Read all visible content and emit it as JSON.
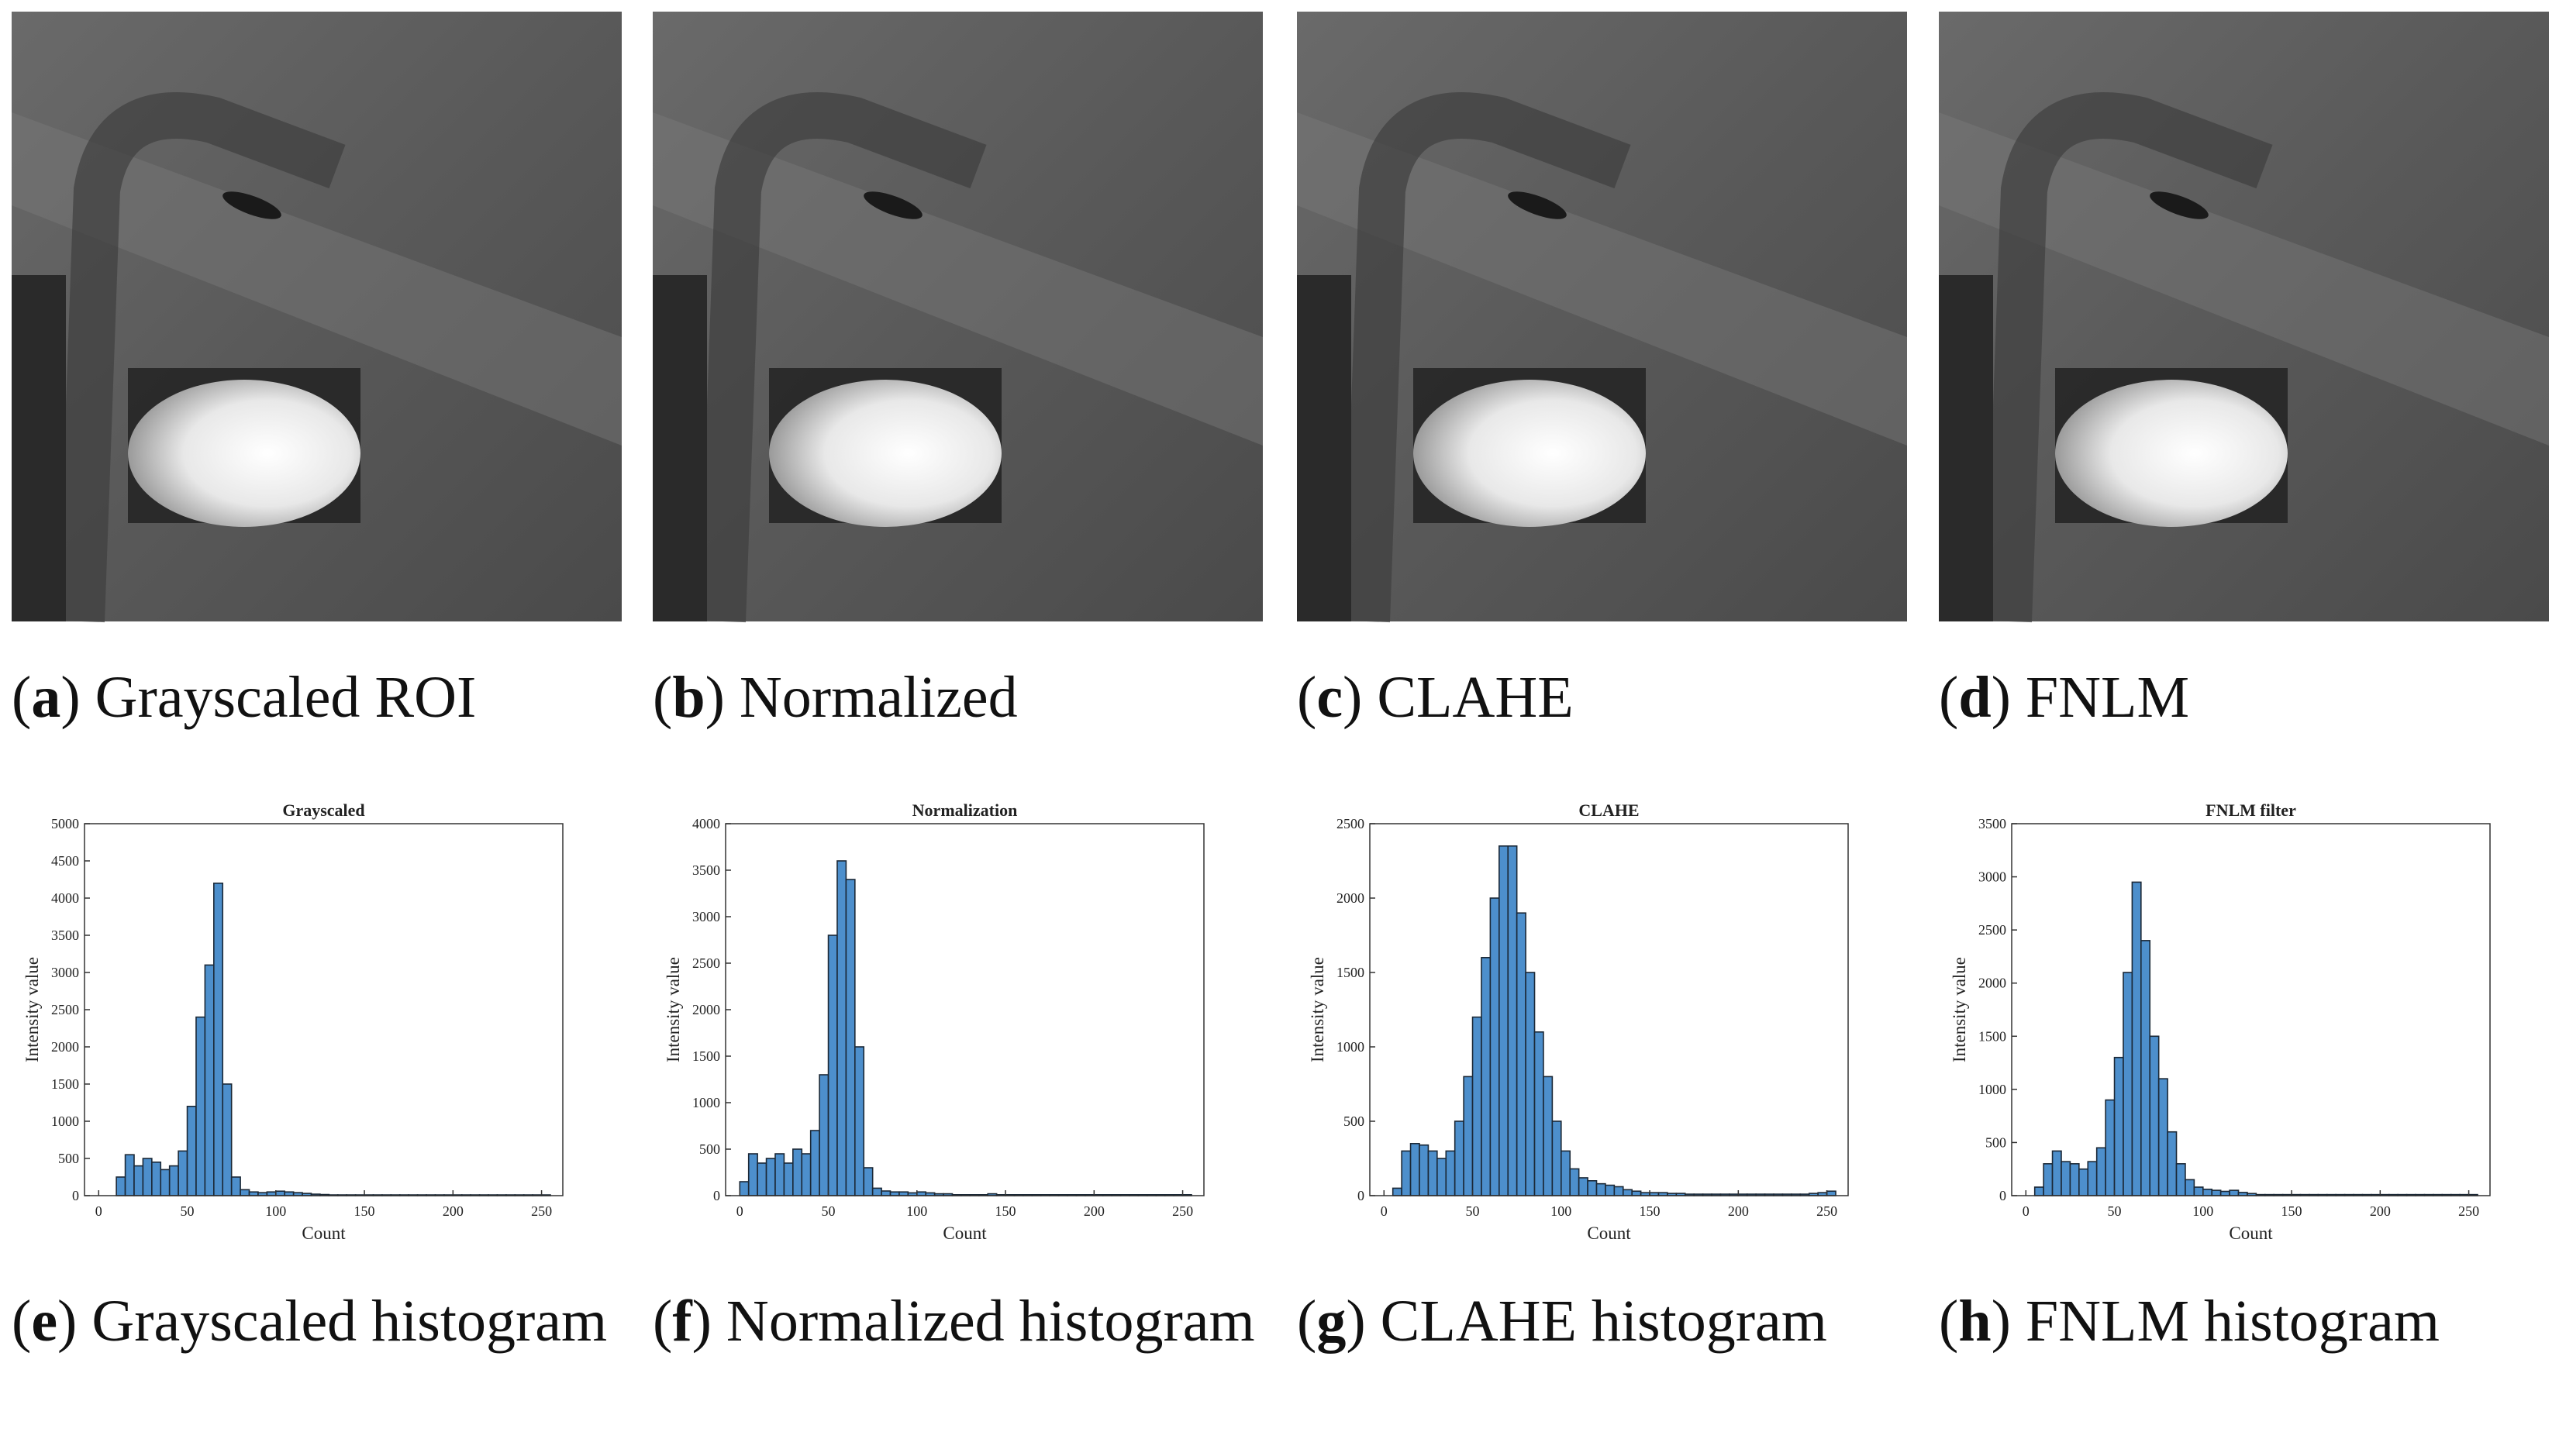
{
  "images": [
    {
      "caption": [
        "(",
        "a",
        ") Grayscaled ROI"
      ]
    },
    {
      "caption": [
        "(",
        "b",
        ") Normalized"
      ]
    },
    {
      "caption": [
        "(",
        "c",
        ") CLAHE"
      ]
    },
    {
      "caption": [
        "(",
        "d",
        ") FNLM"
      ]
    }
  ],
  "chart_data": [
    {
      "type": "histogram",
      "title": "Grayscaled",
      "xlabel": "Count",
      "ylabel": "Intensity value",
      "caption": [
        "(",
        "e",
        ") Grayscaled histogram"
      ],
      "color": "#4d8fcc",
      "bins": [
        0,
        5,
        10,
        15,
        20,
        25,
        30,
        35,
        40,
        45,
        50,
        55,
        60,
        65,
        70,
        75,
        80,
        85,
        90,
        95,
        100,
        105,
        110,
        115,
        120,
        125,
        130,
        135,
        140,
        145,
        150,
        155,
        160,
        165,
        170,
        175,
        180,
        185,
        190,
        195,
        200,
        205,
        210,
        215,
        220,
        225,
        230,
        235,
        240,
        245,
        250,
        255
      ],
      "values": [
        0,
        0,
        250,
        550,
        400,
        500,
        450,
        350,
        400,
        600,
        1200,
        2400,
        3100,
        4200,
        1500,
        250,
        80,
        50,
        40,
        50,
        60,
        50,
        40,
        30,
        20,
        15,
        10,
        10,
        10,
        10,
        10,
        10,
        10,
        10,
        10,
        10,
        10,
        10,
        10,
        10,
        10,
        10,
        10,
        10,
        10,
        10,
        10,
        10,
        10,
        10,
        10
      ],
      "xlim": [
        -8,
        262
      ],
      "xticks": [
        0,
        50,
        100,
        150,
        200,
        250
      ],
      "ylim": [
        0,
        5000
      ],
      "yticks": [
        0,
        500,
        1000,
        1500,
        2000,
        2500,
        3000,
        3500,
        4000,
        4500,
        5000
      ]
    },
    {
      "type": "histogram",
      "title": "Normalization",
      "xlabel": "Count",
      "ylabel": "Intensity value",
      "caption": [
        "(",
        "f",
        ") Normalized histogram"
      ],
      "color": "#4d8fcc",
      "bins": [
        0,
        5,
        10,
        15,
        20,
        25,
        30,
        35,
        40,
        45,
        50,
        55,
        60,
        65,
        70,
        75,
        80,
        85,
        90,
        95,
        100,
        105,
        110,
        115,
        120,
        125,
        130,
        135,
        140,
        145,
        150,
        155,
        160,
        165,
        170,
        175,
        180,
        185,
        190,
        195,
        200,
        205,
        210,
        215,
        220,
        225,
        230,
        235,
        240,
        245,
        250,
        255
      ],
      "values": [
        150,
        450,
        350,
        400,
        450,
        350,
        500,
        450,
        700,
        1300,
        2800,
        3600,
        3400,
        1600,
        300,
        80,
        50,
        40,
        40,
        30,
        40,
        30,
        20,
        20,
        10,
        10,
        10,
        10,
        20,
        10,
        10,
        10,
        10,
        10,
        10,
        10,
        10,
        10,
        10,
        10,
        10,
        10,
        10,
        10,
        10,
        10,
        10,
        10,
        10,
        10,
        10
      ],
      "xlim": [
        -8,
        262
      ],
      "xticks": [
        0,
        50,
        100,
        150,
        200,
        250
      ],
      "ylim": [
        0,
        4000
      ],
      "yticks": [
        0,
        500,
        1000,
        1500,
        2000,
        2500,
        3000,
        3500,
        4000
      ]
    },
    {
      "type": "histogram",
      "title": "CLAHE",
      "xlabel": "Count",
      "ylabel": "Intensity value",
      "caption": [
        "(",
        "g",
        ") CLAHE histogram"
      ],
      "color": "#4d8fcc",
      "bins": [
        0,
        5,
        10,
        15,
        20,
        25,
        30,
        35,
        40,
        45,
        50,
        55,
        60,
        65,
        70,
        75,
        80,
        85,
        90,
        95,
        100,
        105,
        110,
        115,
        120,
        125,
        130,
        135,
        140,
        145,
        150,
        155,
        160,
        165,
        170,
        175,
        180,
        185,
        190,
        195,
        200,
        205,
        210,
        215,
        220,
        225,
        230,
        235,
        240,
        245,
        250,
        255
      ],
      "values": [
        0,
        50,
        300,
        350,
        340,
        300,
        250,
        300,
        500,
        800,
        1200,
        1600,
        2000,
        2350,
        2350,
        1900,
        1500,
        1100,
        800,
        500,
        300,
        180,
        120,
        100,
        80,
        70,
        60,
        40,
        30,
        20,
        20,
        20,
        15,
        15,
        10,
        10,
        10,
        10,
        10,
        10,
        10,
        10,
        10,
        10,
        10,
        10,
        10,
        10,
        15,
        20,
        30
      ],
      "xlim": [
        -8,
        262
      ],
      "xticks": [
        0,
        50,
        100,
        150,
        200,
        250
      ],
      "ylim": [
        0,
        2500
      ],
      "yticks": [
        0,
        500,
        1000,
        1500,
        2000,
        2500
      ]
    },
    {
      "type": "histogram",
      "title": "FNLM filter",
      "xlabel": "Count",
      "ylabel": "Intensity value",
      "caption": [
        "(",
        "h",
        ") FNLM histogram"
      ],
      "color": "#4d8fcc",
      "bins": [
        0,
        5,
        10,
        15,
        20,
        25,
        30,
        35,
        40,
        45,
        50,
        55,
        60,
        65,
        70,
        75,
        80,
        85,
        90,
        95,
        100,
        105,
        110,
        115,
        120,
        125,
        130,
        135,
        140,
        145,
        150,
        155,
        160,
        165,
        170,
        175,
        180,
        185,
        190,
        195,
        200,
        205,
        210,
        215,
        220,
        225,
        230,
        235,
        240,
        245,
        250,
        255
      ],
      "values": [
        0,
        80,
        300,
        420,
        320,
        300,
        250,
        320,
        450,
        900,
        1300,
        2100,
        2950,
        2400,
        1500,
        1100,
        600,
        300,
        150,
        80,
        60,
        50,
        40,
        50,
        30,
        20,
        10,
        10,
        10,
        10,
        10,
        10,
        10,
        10,
        10,
        10,
        10,
        10,
        10,
        10,
        10,
        10,
        10,
        10,
        10,
        10,
        10,
        10,
        10,
        10,
        10
      ],
      "xlim": [
        -8,
        262
      ],
      "xticks": [
        0,
        50,
        100,
        150,
        200,
        250
      ],
      "ylim": [
        0,
        3500
      ],
      "yticks": [
        0,
        500,
        1000,
        1500,
        2000,
        2500,
        3000,
        3500
      ]
    }
  ]
}
